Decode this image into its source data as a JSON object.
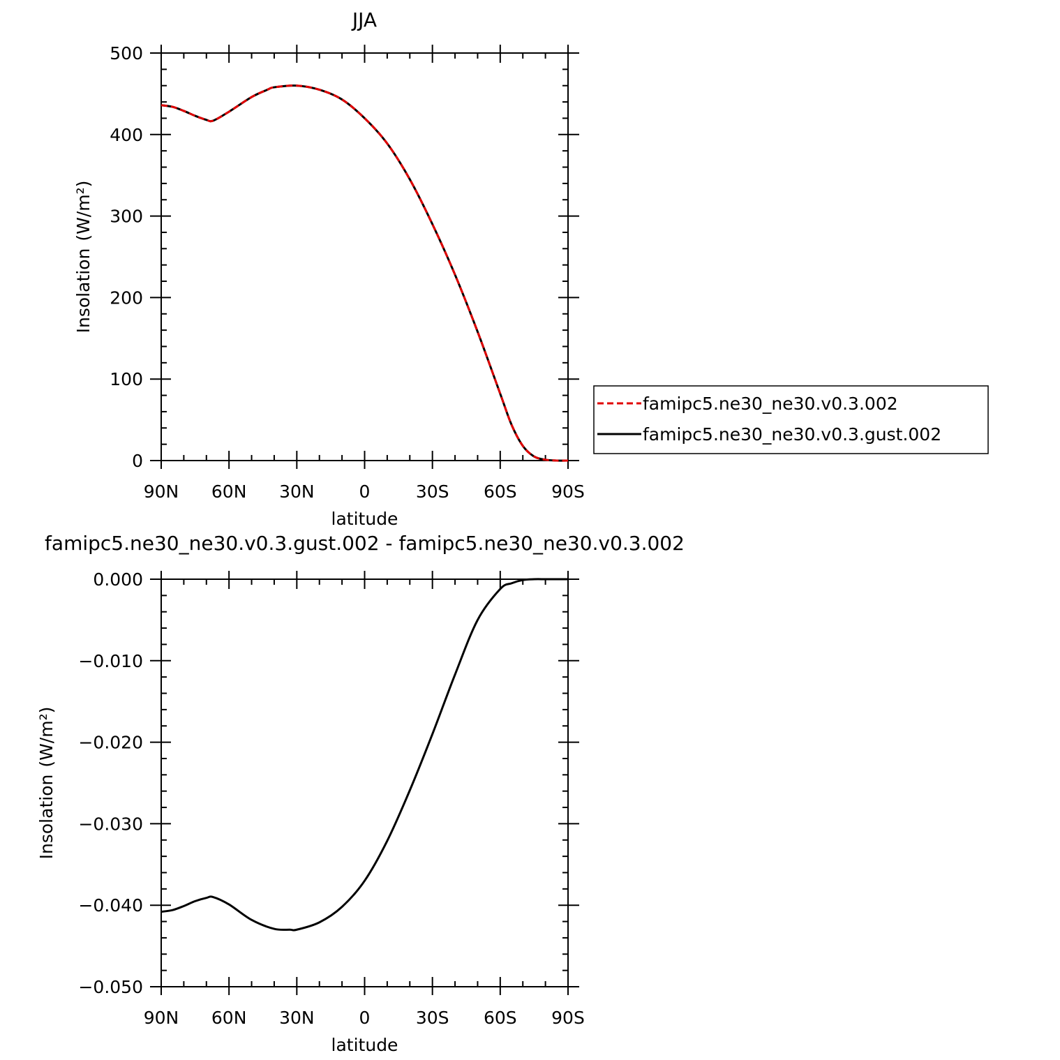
{
  "chart_data": [
    {
      "type": "line",
      "title": "JJA",
      "xlabel": "latitude",
      "ylabel": "Insolation",
      "yunit": "(W/m²)",
      "x_ticks": [
        "90N",
        "60N",
        "30N",
        "0",
        "30S",
        "60S",
        "90S"
      ],
      "y_ticks": [
        "0",
        "100",
        "200",
        "300",
        "400",
        "500"
      ],
      "xlim": [
        90,
        -90
      ],
      "ylim": [
        0,
        500
      ],
      "grid": false,
      "legend_placement": "right",
      "colors": {
        "famipc5.ne30_ne30.v0.3.002": "#e00000",
        "famipc5.ne30_ne30.v0.3.gust.002": "#000000"
      },
      "x": [
        90,
        85,
        80,
        75,
        70,
        67,
        60,
        50,
        43,
        40,
        30,
        20,
        10,
        0,
        -10,
        -20,
        -30,
        -40,
        -50,
        -60,
        -65,
        -70,
        -75,
        -80,
        -85,
        -90
      ],
      "series": [
        {
          "name": "famipc5.ne30_ne30.v0.3.002",
          "style": "dashed",
          "values": [
            436,
            434,
            429,
            423,
            418,
            417,
            428,
            446,
            455,
            458,
            460,
            455,
            443,
            420,
            389,
            345,
            290,
            228,
            158,
            82,
            44,
            18,
            5,
            1,
            0,
            0
          ]
        },
        {
          "name": "famipc5.ne30_ne30.v0.3.gust.002",
          "style": "solid",
          "values": [
            436,
            434,
            429,
            423,
            418,
            417,
            428,
            446,
            455,
            458,
            460,
            455,
            443,
            420,
            389,
            345,
            290,
            228,
            158,
            82,
            44,
            18,
            5,
            1,
            0,
            0
          ]
        }
      ]
    },
    {
      "type": "line",
      "title": "famipc5.ne30_ne30.v0.3.gust.002 - famipc5.ne30_ne30.v0.3.002",
      "xlabel": "latitude",
      "ylabel": "Insolation",
      "yunit": "(W/m²)",
      "x_ticks": [
        "90N",
        "60N",
        "30N",
        "0",
        "30S",
        "60S",
        "90S"
      ],
      "y_ticks": [
        "0.000",
        "−0.010",
        "−0.020",
        "−0.030",
        "−0.040",
        "−0.050"
      ],
      "xlim": [
        90,
        -90
      ],
      "ylim": [
        -0.05,
        0
      ],
      "grid": false,
      "x": [
        90,
        85,
        80,
        75,
        70,
        67,
        60,
        50,
        40,
        33,
        30,
        20,
        10,
        0,
        -10,
        -20,
        -30,
        -40,
        -50,
        -60,
        -65,
        -70,
        -75,
        -80,
        -85,
        -90
      ],
      "series": [
        {
          "style": "solid",
          "color": "#000000",
          "values": [
            -0.0408,
            -0.0406,
            -0.0401,
            -0.0395,
            -0.0391,
            -0.039,
            -0.0399,
            -0.0418,
            -0.0429,
            -0.043,
            -0.043,
            -0.0421,
            -0.0402,
            -0.037,
            -0.0321,
            -0.0259,
            -0.019,
            -0.0117,
            -0.005,
            -0.0012,
            -0.0005,
            -0.0001,
            0,
            0,
            0,
            0
          ]
        }
      ]
    }
  ]
}
